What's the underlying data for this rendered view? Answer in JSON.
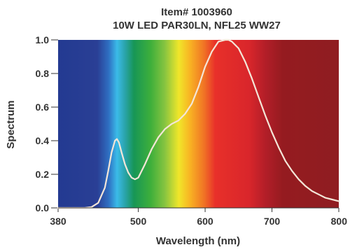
{
  "chart_data": {
    "type": "line",
    "title": "Item# 1003960",
    "subtitle": "10W LED PAR30LN, NFL25 WW27",
    "xlabel": "Wavelength (nm)",
    "ylabel": "Spectrum",
    "xlim": [
      380,
      800
    ],
    "ylim": [
      0.0,
      1.0
    ],
    "x_ticks": [
      "380",
      "500",
      "600",
      "700",
      "800"
    ],
    "y_ticks": [
      "0.0",
      "0.2",
      "0.4",
      "0.6",
      "0.8",
      "1.0"
    ],
    "grid": false,
    "background": "visible-spectrum color gradient",
    "series": [
      {
        "color": "#f4e6d8",
        "x": [
          380,
          400,
          420,
          430,
          440,
          450,
          455,
          460,
          465,
          468,
          471,
          475,
          480,
          485,
          490,
          495,
          500,
          510,
          520,
          530,
          540,
          550,
          560,
          570,
          580,
          590,
          600,
          610,
          620,
          630,
          635,
          640,
          650,
          660,
          670,
          680,
          690,
          700,
          710,
          720,
          730,
          740,
          750,
          760,
          770,
          780,
          790,
          800
        ],
        "y": [
          0.0,
          0.0,
          0.0,
          0.005,
          0.03,
          0.12,
          0.22,
          0.33,
          0.4,
          0.41,
          0.39,
          0.33,
          0.26,
          0.21,
          0.18,
          0.17,
          0.18,
          0.26,
          0.35,
          0.42,
          0.47,
          0.5,
          0.52,
          0.56,
          0.62,
          0.72,
          0.84,
          0.93,
          0.99,
          1.0,
          1.0,
          0.99,
          0.95,
          0.87,
          0.77,
          0.66,
          0.55,
          0.45,
          0.36,
          0.28,
          0.22,
          0.17,
          0.13,
          0.1,
          0.08,
          0.06,
          0.05,
          0.04
        ]
      }
    ]
  }
}
